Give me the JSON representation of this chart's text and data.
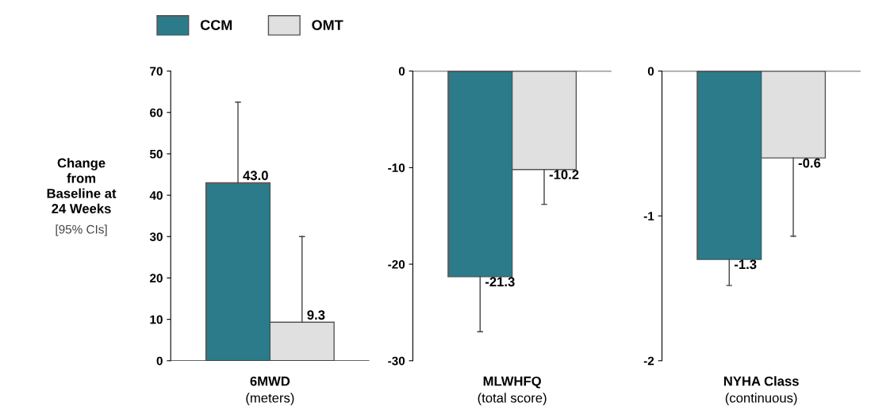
{
  "chart_data": [
    {
      "type": "bar",
      "categories": [
        "6MWD"
      ],
      "xlabel": "(meters)",
      "ylabel": "Change\nfrom\nBaseline at\n24 Weeks",
      "annotations": [
        "[95% CIs]"
      ],
      "ylim": [
        0,
        70
      ],
      "yticks": [
        0,
        10,
        20,
        30,
        40,
        50,
        60,
        70
      ],
      "legend": "top",
      "grid": false,
      "series": [
        {
          "name": "CCM",
          "color": "#2c7b8a",
          "values": [
            43.0
          ],
          "errors": [
            [
              43.0,
              62.5
            ]
          ],
          "value_labels": [
            "43.0"
          ]
        },
        {
          "name": "OMT",
          "color": "#e0e0e0",
          "values": [
            9.3
          ],
          "errors": [
            [
              9.3,
              30.0
            ]
          ],
          "value_labels": [
            "9.3"
          ]
        }
      ]
    },
    {
      "type": "bar",
      "categories": [
        "MLWHFQ"
      ],
      "xlabel": "(total score)",
      "ylim": [
        -30,
        0
      ],
      "yticks": [
        -30,
        -20,
        -10,
        0
      ],
      "grid": false,
      "series": [
        {
          "color": "#2c7b8a",
          "values": [
            -21.3
          ],
          "errors": [
            [
              -27.0,
              -21.3
            ]
          ],
          "value_labels": [
            "-21.3"
          ]
        },
        {
          "color": "#e0e0e0",
          "values": [
            -10.2
          ],
          "errors": [
            [
              -13.8,
              -10.2
            ]
          ],
          "value_labels": [
            "-10.2"
          ]
        }
      ]
    },
    {
      "type": "bar",
      "categories": [
        "NYHA Class"
      ],
      "xlabel": "(continuous)",
      "ylim": [
        -2,
        0
      ],
      "yticks": [
        -2,
        -1,
        0
      ],
      "grid": false,
      "series": [
        {
          "color": "#2c7b8a",
          "values": [
            -1.3
          ],
          "errors": [
            [
              -1.48,
              -1.3
            ]
          ],
          "value_labels": [
            "-1.3"
          ]
        },
        {
          "color": "#e0e0e0",
          "values": [
            -0.6
          ],
          "errors": [
            [
              -1.14,
              -0.6
            ]
          ],
          "value_labels": [
            "-0.6"
          ]
        }
      ]
    }
  ]
}
